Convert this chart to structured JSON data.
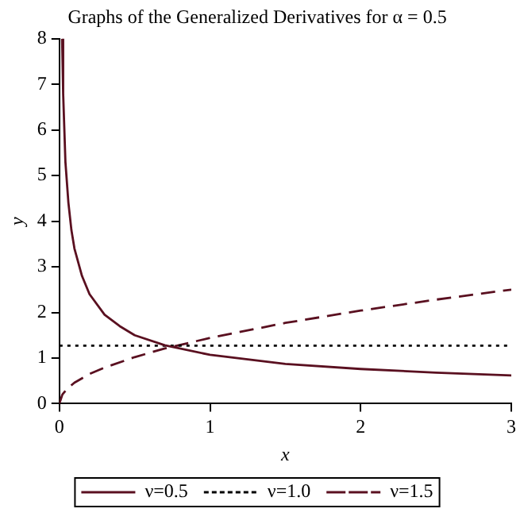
{
  "chart_data": {
    "type": "line",
    "title": "Graphs of the Generalized Derivatives for α = 0.5",
    "xlabel": "x",
    "ylabel": "y",
    "xlim": [
      0,
      3
    ],
    "ylim": [
      0,
      8
    ],
    "xticks": [
      0,
      1,
      2,
      3
    ],
    "yticks": [
      0,
      1,
      2,
      3,
      4,
      5,
      6,
      7,
      8
    ],
    "grid": false,
    "legend": "bottom",
    "marker": "none",
    "series": [
      {
        "name": "ν=0.5",
        "color": "#5a1020",
        "line_style": "solid",
        "x": [
          0.018,
          0.025,
          0.04,
          0.06,
          0.08,
          0.1,
          0.15,
          0.2,
          0.3,
          0.4,
          0.5,
          0.7,
          1,
          1.5,
          2,
          2.5,
          3
        ],
        "values": [
          8,
          6.8,
          5.3,
          4.4,
          3.8,
          3.4,
          2.8,
          2.4,
          1.95,
          1.7,
          1.5,
          1.28,
          1.07,
          0.87,
          0.76,
          0.68,
          0.62
        ]
      },
      {
        "name": "ν=1.0",
        "color": "#000000",
        "line_style": "dotted",
        "x": [
          0,
          3
        ],
        "values": [
          1.27,
          1.27
        ]
      },
      {
        "name": "ν=1.5",
        "color": "#5a1020",
        "line_style": "dashed",
        "x": [
          0,
          0.02,
          0.05,
          0.1,
          0.2,
          0.3,
          0.5,
          0.7,
          1,
          1.5,
          2,
          2.5,
          3
        ],
        "values": [
          0,
          0.2,
          0.32,
          0.46,
          0.65,
          0.79,
          1.02,
          1.21,
          1.44,
          1.77,
          2.04,
          2.28,
          2.5
        ]
      }
    ]
  }
}
